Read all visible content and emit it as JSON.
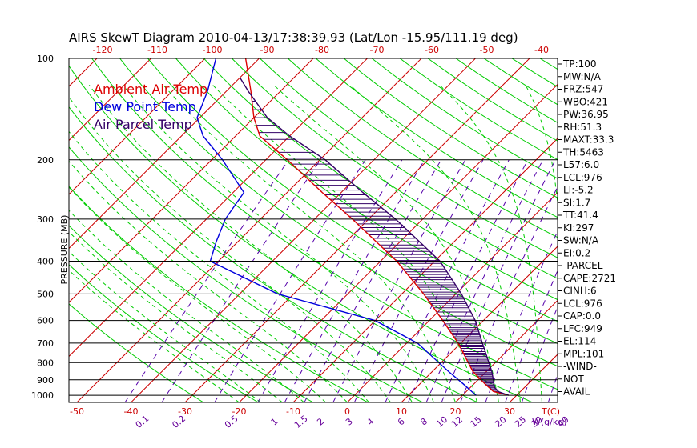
{
  "chart_data": {
    "type": "line",
    "title": "AIRS SkewT Diagram 2010-04-13/17:38:39.93 (Lat/Lon -15.95/111.19 deg)",
    "ylabel": "PRESSURE (MB)",
    "xlabel": "T(C)",
    "mixing_ratio_label": "W(g/kg)",
    "ylim": [
      1050,
      100
    ],
    "y_scale": "log",
    "xlim": [
      -50,
      40
    ],
    "pressure_ticks": [
      100,
      200,
      300,
      400,
      500,
      600,
      700,
      800,
      900,
      1000
    ],
    "temp_ticks": [
      -50,
      -40,
      -30,
      -20,
      -10,
      0,
      10,
      20,
      30
    ],
    "top_temp_ticks": [
      -120,
      -110,
      -100,
      -90,
      -80,
      -70,
      -60,
      -50,
      -40
    ],
    "mixing_ratio_ticks": [
      "0.1",
      "0.2",
      "0.5",
      "1",
      "1.5",
      "2",
      "3",
      "4",
      "6",
      "8",
      "10",
      "12",
      "15",
      "20",
      "25",
      "30",
      "40"
    ],
    "legend": [
      "Ambient Air Temp",
      "Dew Point Temp",
      "Air Parcel Temp"
    ],
    "colors": {
      "ambient": "#dd0000",
      "dewpoint": "#0000dd",
      "parcel": "#330066",
      "isotherm": "#cc0000",
      "dry_adiabat": "#00cc00",
      "moist_adiabat": "#00cc00",
      "mixing_ratio": "#5500aa",
      "isobar": "#000000"
    },
    "series": [
      {
        "name": "Ambient Air Temp",
        "points": [
          {
            "p": 1000,
            "t": 28.5
          },
          {
            "p": 975,
            "t": 25.0
          },
          {
            "p": 925,
            "t": 22.0
          },
          {
            "p": 850,
            "t": 17.5
          },
          {
            "p": 700,
            "t": 9.5
          },
          {
            "p": 600,
            "t": 2.5
          },
          {
            "p": 500,
            "t": -6.0
          },
          {
            "p": 400,
            "t": -17.0
          },
          {
            "p": 300,
            "t": -33.0
          },
          {
            "p": 250,
            "t": -43.5
          },
          {
            "p": 200,
            "t": -56.0
          },
          {
            "p": 170,
            "t": -65.5
          },
          {
            "p": 150,
            "t": -70.0
          },
          {
            "p": 125,
            "t": -75.5
          },
          {
            "p": 100,
            "t": -82.5
          }
        ]
      },
      {
        "name": "Dew Point Temp",
        "points": [
          {
            "p": 1000,
            "t": 22.5
          },
          {
            "p": 975,
            "t": 21.0
          },
          {
            "p": 925,
            "t": 18.0
          },
          {
            "p": 850,
            "t": 13.0
          },
          {
            "p": 700,
            "t": 2.0
          },
          {
            "p": 600,
            "t": -10.0
          },
          {
            "p": 500,
            "t": -33.0
          },
          {
            "p": 400,
            "t": -51.5
          },
          {
            "p": 350,
            "t": -54.0
          },
          {
            "p": 300,
            "t": -56.5
          },
          {
            "p": 250,
            "t": -58.0
          },
          {
            "p": 200,
            "t": -68.0
          },
          {
            "p": 170,
            "t": -76.0
          },
          {
            "p": 150,
            "t": -80.5
          },
          {
            "p": 125,
            "t": -83.5
          },
          {
            "p": 100,
            "t": -88.0
          }
        ]
      },
      {
        "name": "Air Parcel Temp",
        "points": [
          {
            "p": 1000,
            "t": 28.5
          },
          {
            "p": 976,
            "t": 26.0
          },
          {
            "p": 949,
            "t": 24.5
          },
          {
            "p": 850,
            "t": 21.0
          },
          {
            "p": 700,
            "t": 14.0
          },
          {
            "p": 600,
            "t": 8.5
          },
          {
            "p": 500,
            "t": 1.0
          },
          {
            "p": 400,
            "t": -9.0
          },
          {
            "p": 300,
            "t": -25.0
          },
          {
            "p": 250,
            "t": -36.0
          },
          {
            "p": 200,
            "t": -49.0
          },
          {
            "p": 170,
            "t": -60.0
          },
          {
            "p": 150,
            "t": -67.5
          },
          {
            "p": 125,
            "t": -76.0
          },
          {
            "p": 114,
            "t": -80.0
          }
        ]
      }
    ]
  },
  "indices": [
    "TP:100",
    "MW:N/A",
    "FRZ:547",
    "WBO:421",
    "PW:36.95",
    "RH:51.3",
    "MAXT:33.3",
    "TH:5463",
    "L57:6.0",
    "LCL:976",
    "LI:-5.2",
    "SI:1.7",
    "TT:41.4",
    "KI:297",
    "SW:N/A",
    "EI:0.2",
    "-PARCEL-",
    "CAPE:2721",
    "CINH:6",
    "LCL:976",
    "CAP:0.0",
    "LFC:949",
    "EL:114",
    "MPL:101",
    "-WIND-",
    "NOT",
    "AVAIL"
  ]
}
